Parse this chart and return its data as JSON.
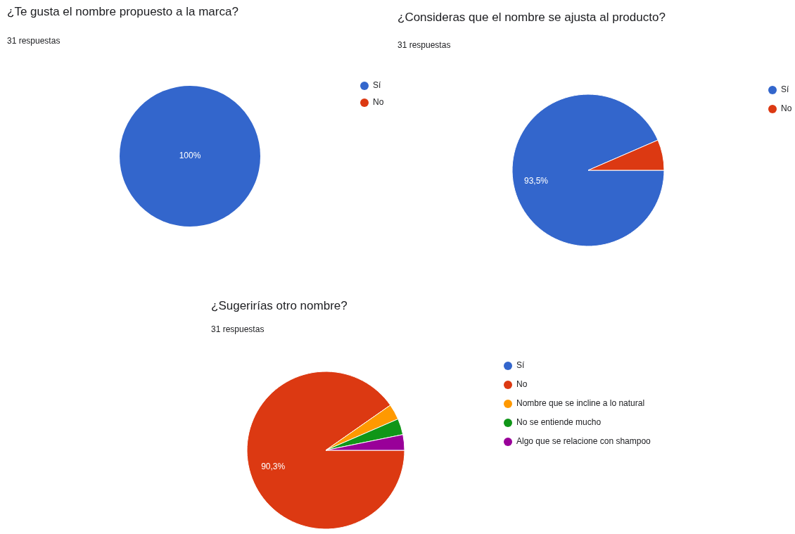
{
  "chart_data": [
    {
      "type": "pie",
      "title": "¿Te gusta el nombre propuesto a la marca?",
      "subtitle": "31 respuestas",
      "categories": [
        "Sí",
        "No"
      ],
      "values": [
        100,
        0
      ],
      "colors": [
        "#3366cc",
        "#dc3912"
      ],
      "value_labels": [
        "100%",
        null
      ],
      "legend": "right"
    },
    {
      "type": "pie",
      "title": "¿Consideras que el nombre se ajusta al producto?",
      "subtitle": "31 respuestas",
      "categories": [
        "Sí",
        "No"
      ],
      "values": [
        93.5,
        6.5
      ],
      "colors": [
        "#3366cc",
        "#dc3912"
      ],
      "value_labels": [
        "93,5%",
        null
      ],
      "legend": "right"
    },
    {
      "type": "pie",
      "title": "¿Sugerirías otro nombre?",
      "subtitle": "31 respuestas",
      "categories": [
        "Sí",
        "No",
        "Nombre que se incline a lo natural",
        "No se entiende mucho",
        "Algo que se relacione con shampoo"
      ],
      "values": [
        0,
        90.3,
        3.2,
        3.3,
        3.2
      ],
      "colors": [
        "#3366cc",
        "#dc3912",
        "#ff9900",
        "#109618",
        "#990099"
      ],
      "value_labels": [
        null,
        "90,3%",
        null,
        null,
        null
      ],
      "legend": "right"
    }
  ]
}
